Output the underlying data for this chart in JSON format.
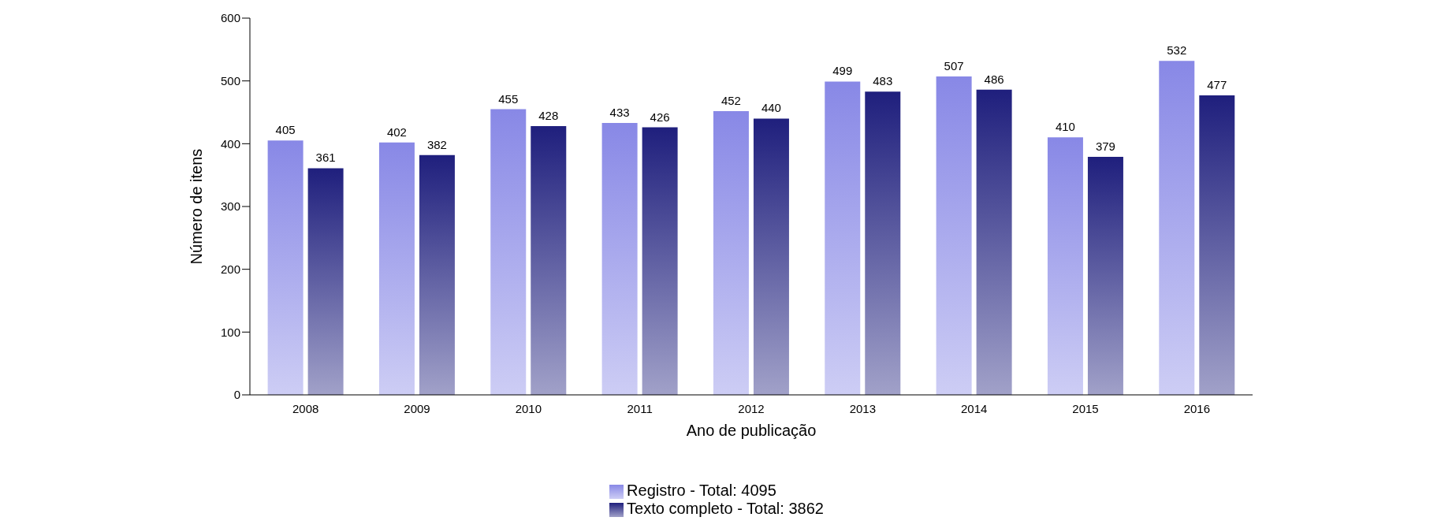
{
  "chart_data": {
    "type": "bar",
    "xlabel": "Ano de publicação",
    "ylabel": "Número de itens",
    "categories": [
      "2008",
      "2009",
      "2010",
      "2011",
      "2012",
      "2013",
      "2014",
      "2015",
      "2016"
    ],
    "series": [
      {
        "name": "Registro - Total: 4095",
        "color": "#8888e6",
        "values": [
          405,
          402,
          455,
          433,
          452,
          499,
          507,
          410,
          532
        ]
      },
      {
        "name": "Texto completo - Total: 3862",
        "color": "#1f1f7d",
        "values": [
          361,
          382,
          428,
          426,
          440,
          483,
          486,
          379,
          477
        ]
      }
    ],
    "ylim": [
      0,
      600
    ],
    "yticks": [
      0,
      100,
      200,
      300,
      400,
      500,
      600
    ],
    "grid": false,
    "legend": "bottom",
    "data_labels": true
  }
}
